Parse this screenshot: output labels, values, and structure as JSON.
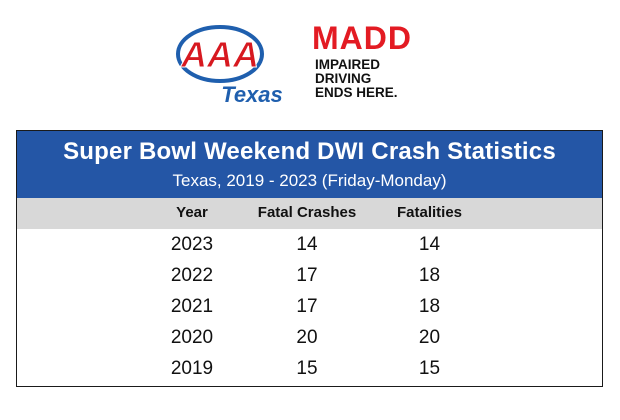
{
  "logos": {
    "aaa": {
      "letters": "AAA",
      "region": "Texas"
    },
    "madd": {
      "wordmark": "MADD",
      "tagline": [
        "IMPAIRED",
        "DRIVING",
        "ENDS HERE."
      ]
    }
  },
  "table": {
    "title": "Super Bowl Weekend DWI Crash Statistics",
    "subtitle": "Texas, 2019 - 2023 (Friday-Monday)",
    "columns": [
      "Year",
      "Fatal Crashes",
      "Fatalities"
    ],
    "rows": [
      [
        "2023",
        "14",
        "14"
      ],
      [
        "2022",
        "17",
        "18"
      ],
      [
        "2021",
        "17",
        "18"
      ],
      [
        "2020",
        "20",
        "20"
      ],
      [
        "2019",
        "15",
        "15"
      ]
    ]
  },
  "colors": {
    "header_blue": "#2456a6",
    "madd_red": "#e31b23",
    "aaa_red": "#d71920",
    "aaa_blue": "#1f5fae"
  }
}
